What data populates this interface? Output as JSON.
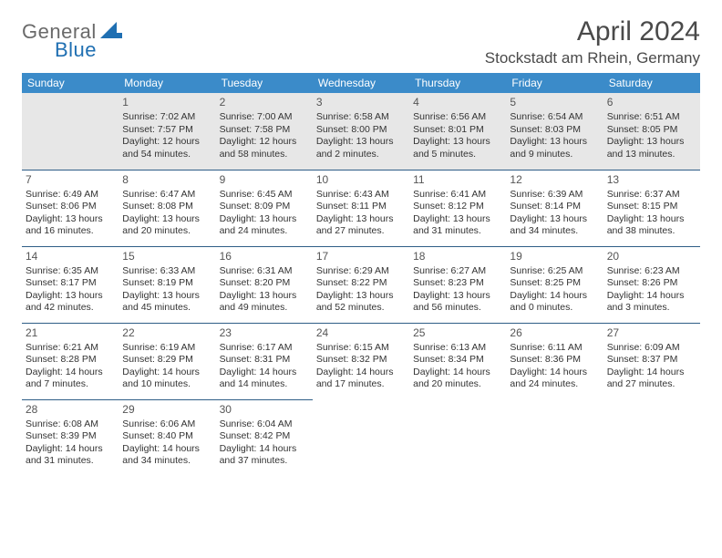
{
  "brand": {
    "part1": "General",
    "part2": "Blue"
  },
  "title": "April 2024",
  "location": "Stockstadt am Rhein, Germany",
  "colors": {
    "header_bg": "#3b8bc9",
    "header_text": "#ffffff",
    "row_border": "#2f5e87",
    "first_row_bg": "#e7e7e7",
    "body_text": "#333333",
    "logo_gray": "#6a6a6a",
    "logo_blue": "#1f6fb2"
  },
  "weekdays": [
    "Sunday",
    "Monday",
    "Tuesday",
    "Wednesday",
    "Thursday",
    "Friday",
    "Saturday"
  ],
  "weeks": [
    [
      null,
      {
        "n": "1",
        "sr": "Sunrise: 7:02 AM",
        "ss": "Sunset: 7:57 PM",
        "d1": "Daylight: 12 hours",
        "d2": "and 54 minutes."
      },
      {
        "n": "2",
        "sr": "Sunrise: 7:00 AM",
        "ss": "Sunset: 7:58 PM",
        "d1": "Daylight: 12 hours",
        "d2": "and 58 minutes."
      },
      {
        "n": "3",
        "sr": "Sunrise: 6:58 AM",
        "ss": "Sunset: 8:00 PM",
        "d1": "Daylight: 13 hours",
        "d2": "and 2 minutes."
      },
      {
        "n": "4",
        "sr": "Sunrise: 6:56 AM",
        "ss": "Sunset: 8:01 PM",
        "d1": "Daylight: 13 hours",
        "d2": "and 5 minutes."
      },
      {
        "n": "5",
        "sr": "Sunrise: 6:54 AM",
        "ss": "Sunset: 8:03 PM",
        "d1": "Daylight: 13 hours",
        "d2": "and 9 minutes."
      },
      {
        "n": "6",
        "sr": "Sunrise: 6:51 AM",
        "ss": "Sunset: 8:05 PM",
        "d1": "Daylight: 13 hours",
        "d2": "and 13 minutes."
      }
    ],
    [
      {
        "n": "7",
        "sr": "Sunrise: 6:49 AM",
        "ss": "Sunset: 8:06 PM",
        "d1": "Daylight: 13 hours",
        "d2": "and 16 minutes."
      },
      {
        "n": "8",
        "sr": "Sunrise: 6:47 AM",
        "ss": "Sunset: 8:08 PM",
        "d1": "Daylight: 13 hours",
        "d2": "and 20 minutes."
      },
      {
        "n": "9",
        "sr": "Sunrise: 6:45 AM",
        "ss": "Sunset: 8:09 PM",
        "d1": "Daylight: 13 hours",
        "d2": "and 24 minutes."
      },
      {
        "n": "10",
        "sr": "Sunrise: 6:43 AM",
        "ss": "Sunset: 8:11 PM",
        "d1": "Daylight: 13 hours",
        "d2": "and 27 minutes."
      },
      {
        "n": "11",
        "sr": "Sunrise: 6:41 AM",
        "ss": "Sunset: 8:12 PM",
        "d1": "Daylight: 13 hours",
        "d2": "and 31 minutes."
      },
      {
        "n": "12",
        "sr": "Sunrise: 6:39 AM",
        "ss": "Sunset: 8:14 PM",
        "d1": "Daylight: 13 hours",
        "d2": "and 34 minutes."
      },
      {
        "n": "13",
        "sr": "Sunrise: 6:37 AM",
        "ss": "Sunset: 8:15 PM",
        "d1": "Daylight: 13 hours",
        "d2": "and 38 minutes."
      }
    ],
    [
      {
        "n": "14",
        "sr": "Sunrise: 6:35 AM",
        "ss": "Sunset: 8:17 PM",
        "d1": "Daylight: 13 hours",
        "d2": "and 42 minutes."
      },
      {
        "n": "15",
        "sr": "Sunrise: 6:33 AM",
        "ss": "Sunset: 8:19 PM",
        "d1": "Daylight: 13 hours",
        "d2": "and 45 minutes."
      },
      {
        "n": "16",
        "sr": "Sunrise: 6:31 AM",
        "ss": "Sunset: 8:20 PM",
        "d1": "Daylight: 13 hours",
        "d2": "and 49 minutes."
      },
      {
        "n": "17",
        "sr": "Sunrise: 6:29 AM",
        "ss": "Sunset: 8:22 PM",
        "d1": "Daylight: 13 hours",
        "d2": "and 52 minutes."
      },
      {
        "n": "18",
        "sr": "Sunrise: 6:27 AM",
        "ss": "Sunset: 8:23 PM",
        "d1": "Daylight: 13 hours",
        "d2": "and 56 minutes."
      },
      {
        "n": "19",
        "sr": "Sunrise: 6:25 AM",
        "ss": "Sunset: 8:25 PM",
        "d1": "Daylight: 14 hours",
        "d2": "and 0 minutes."
      },
      {
        "n": "20",
        "sr": "Sunrise: 6:23 AM",
        "ss": "Sunset: 8:26 PM",
        "d1": "Daylight: 14 hours",
        "d2": "and 3 minutes."
      }
    ],
    [
      {
        "n": "21",
        "sr": "Sunrise: 6:21 AM",
        "ss": "Sunset: 8:28 PM",
        "d1": "Daylight: 14 hours",
        "d2": "and 7 minutes."
      },
      {
        "n": "22",
        "sr": "Sunrise: 6:19 AM",
        "ss": "Sunset: 8:29 PM",
        "d1": "Daylight: 14 hours",
        "d2": "and 10 minutes."
      },
      {
        "n": "23",
        "sr": "Sunrise: 6:17 AM",
        "ss": "Sunset: 8:31 PM",
        "d1": "Daylight: 14 hours",
        "d2": "and 14 minutes."
      },
      {
        "n": "24",
        "sr": "Sunrise: 6:15 AM",
        "ss": "Sunset: 8:32 PM",
        "d1": "Daylight: 14 hours",
        "d2": "and 17 minutes."
      },
      {
        "n": "25",
        "sr": "Sunrise: 6:13 AM",
        "ss": "Sunset: 8:34 PM",
        "d1": "Daylight: 14 hours",
        "d2": "and 20 minutes."
      },
      {
        "n": "26",
        "sr": "Sunrise: 6:11 AM",
        "ss": "Sunset: 8:36 PM",
        "d1": "Daylight: 14 hours",
        "d2": "and 24 minutes."
      },
      {
        "n": "27",
        "sr": "Sunrise: 6:09 AM",
        "ss": "Sunset: 8:37 PM",
        "d1": "Daylight: 14 hours",
        "d2": "and 27 minutes."
      }
    ],
    [
      {
        "n": "28",
        "sr": "Sunrise: 6:08 AM",
        "ss": "Sunset: 8:39 PM",
        "d1": "Daylight: 14 hours",
        "d2": "and 31 minutes."
      },
      {
        "n": "29",
        "sr": "Sunrise: 6:06 AM",
        "ss": "Sunset: 8:40 PM",
        "d1": "Daylight: 14 hours",
        "d2": "and 34 minutes."
      },
      {
        "n": "30",
        "sr": "Sunrise: 6:04 AM",
        "ss": "Sunset: 8:42 PM",
        "d1": "Daylight: 14 hours",
        "d2": "and 37 minutes."
      },
      null,
      null,
      null,
      null
    ]
  ]
}
